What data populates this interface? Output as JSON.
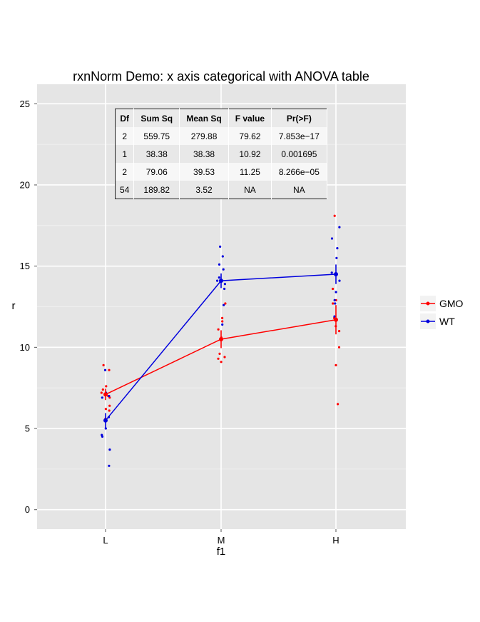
{
  "chart_data": {
    "type": "line",
    "title": "rxnNorm Demo: x axis categorical with ANOVA table",
    "xlabel": "f1",
    "ylabel": "r",
    "categories": [
      "L",
      "M",
      "H"
    ],
    "ylim": [
      -1.2,
      26.2
    ],
    "yticks": [
      0,
      5,
      10,
      15,
      20,
      25
    ],
    "grid": true,
    "legend": "right",
    "series": [
      {
        "name": "GMO",
        "color": "#ff0000",
        "means": [
          7.1,
          10.5,
          11.7
        ],
        "errors": [
          0.35,
          0.55,
          0.9
        ],
        "points": [
          {
            "x": "L",
            "y": 8.9
          },
          {
            "x": "L",
            "y": 8.6
          },
          {
            "x": "L",
            "y": 7.6
          },
          {
            "x": "L",
            "y": 7.4
          },
          {
            "x": "L",
            "y": 7.2
          },
          {
            "x": "L",
            "y": 7.0
          },
          {
            "x": "L",
            "y": 6.9
          },
          {
            "x": "L",
            "y": 6.4
          },
          {
            "x": "L",
            "y": 6.2
          },
          {
            "x": "L",
            "y": 6.1
          },
          {
            "x": "L",
            "y": 5.6
          },
          {
            "x": "M",
            "y": 12.7
          },
          {
            "x": "M",
            "y": 11.8
          },
          {
            "x": "M",
            "y": 11.6
          },
          {
            "x": "M",
            "y": 11.1
          },
          {
            "x": "M",
            "y": 10.6
          },
          {
            "x": "M",
            "y": 9.6
          },
          {
            "x": "M",
            "y": 9.4
          },
          {
            "x": "M",
            "y": 9.3
          },
          {
            "x": "M",
            "y": 9.1
          },
          {
            "x": "H",
            "y": 18.1
          },
          {
            "x": "H",
            "y": 13.6
          },
          {
            "x": "H",
            "y": 12.9
          },
          {
            "x": "H",
            "y": 12.7
          },
          {
            "x": "H",
            "y": 11.8
          },
          {
            "x": "H",
            "y": 11.3
          },
          {
            "x": "H",
            "y": 11.0
          },
          {
            "x": "H",
            "y": 10.0
          },
          {
            "x": "H",
            "y": 8.9
          },
          {
            "x": "H",
            "y": 6.5
          }
        ]
      },
      {
        "name": "WT",
        "color": "#0000dd",
        "means": [
          5.5,
          14.1,
          14.5
        ],
        "errors": [
          0.45,
          0.45,
          0.6
        ],
        "points": [
          {
            "x": "L",
            "y": 8.6
          },
          {
            "x": "L",
            "y": 7.2
          },
          {
            "x": "L",
            "y": 7.0
          },
          {
            "x": "L",
            "y": 6.9
          },
          {
            "x": "L",
            "y": 5.7
          },
          {
            "x": "L",
            "y": 5.0
          },
          {
            "x": "L",
            "y": 4.6
          },
          {
            "x": "L",
            "y": 4.5
          },
          {
            "x": "L",
            "y": 3.7
          },
          {
            "x": "L",
            "y": 2.7
          },
          {
            "x": "M",
            "y": 16.2
          },
          {
            "x": "M",
            "y": 15.6
          },
          {
            "x": "M",
            "y": 15.1
          },
          {
            "x": "M",
            "y": 14.8
          },
          {
            "x": "M",
            "y": 14.3
          },
          {
            "x": "M",
            "y": 14.1
          },
          {
            "x": "M",
            "y": 13.9
          },
          {
            "x": "M",
            "y": 13.6
          },
          {
            "x": "M",
            "y": 12.6
          },
          {
            "x": "M",
            "y": 11.4
          },
          {
            "x": "H",
            "y": 17.4
          },
          {
            "x": "H",
            "y": 16.7
          },
          {
            "x": "H",
            "y": 16.1
          },
          {
            "x": "H",
            "y": 15.5
          },
          {
            "x": "H",
            "y": 14.6
          },
          {
            "x": "H",
            "y": 14.1
          },
          {
            "x": "H",
            "y": 13.4
          },
          {
            "x": "H",
            "y": 12.9
          },
          {
            "x": "H",
            "y": 12.7
          },
          {
            "x": "H",
            "y": 11.9
          }
        ]
      }
    ]
  },
  "anova_table": {
    "headers": [
      "Df",
      "Sum Sq",
      "Mean Sq",
      "F value",
      "Pr(>F)"
    ],
    "rows": [
      [
        "2",
        "559.75",
        "279.88",
        "79.62",
        "7.853e−17"
      ],
      [
        "1",
        "38.38",
        "38.38",
        "10.92",
        "0.001695"
      ],
      [
        "2",
        "79.06",
        "39.53",
        "11.25",
        "8.266e−05"
      ],
      [
        "54",
        "189.82",
        "3.52",
        "NA",
        "NA"
      ]
    ]
  }
}
